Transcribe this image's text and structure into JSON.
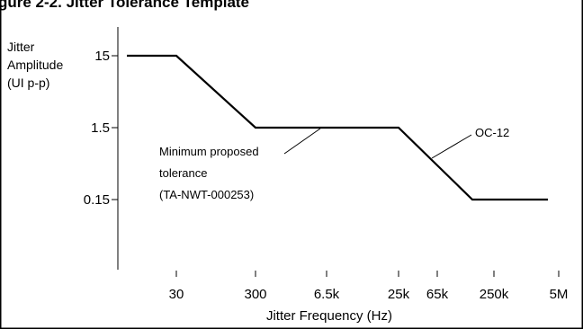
{
  "header": {
    "title_fragment": "gure 2-2. Jitter Tolerance Template"
  },
  "chart_data": {
    "type": "line",
    "title": "",
    "ylabel": "Jitter\nAmplitude\n(UI p-p)",
    "xlabel": "Jitter Frequency (Hz)",
    "x_ticks": [
      {
        "label": "30"
      },
      {
        "label": "300"
      },
      {
        "label": "6.5k"
      },
      {
        "label": "25k"
      },
      {
        "label": "65k"
      },
      {
        "label": "250k"
      },
      {
        "label": "5M"
      }
    ],
    "y_ticks": [
      {
        "label": "15",
        "value": 15
      },
      {
        "label": "1.5",
        "value": 1.5
      },
      {
        "label": "0.15",
        "value": 0.15
      }
    ],
    "series": [
      {
        "name": "OC-12",
        "x": [
          "10",
          "30",
          "300",
          "25k",
          "250k",
          "5M"
        ],
        "y": [
          15,
          15,
          1.5,
          1.5,
          0.15,
          0.15
        ]
      }
    ],
    "annotations": [
      {
        "text": "OC-12"
      },
      {
        "text": "Minimum proposed\ntolerance\n(TA-NWT-000253)"
      }
    ],
    "y_scale": "log",
    "grid": false
  }
}
